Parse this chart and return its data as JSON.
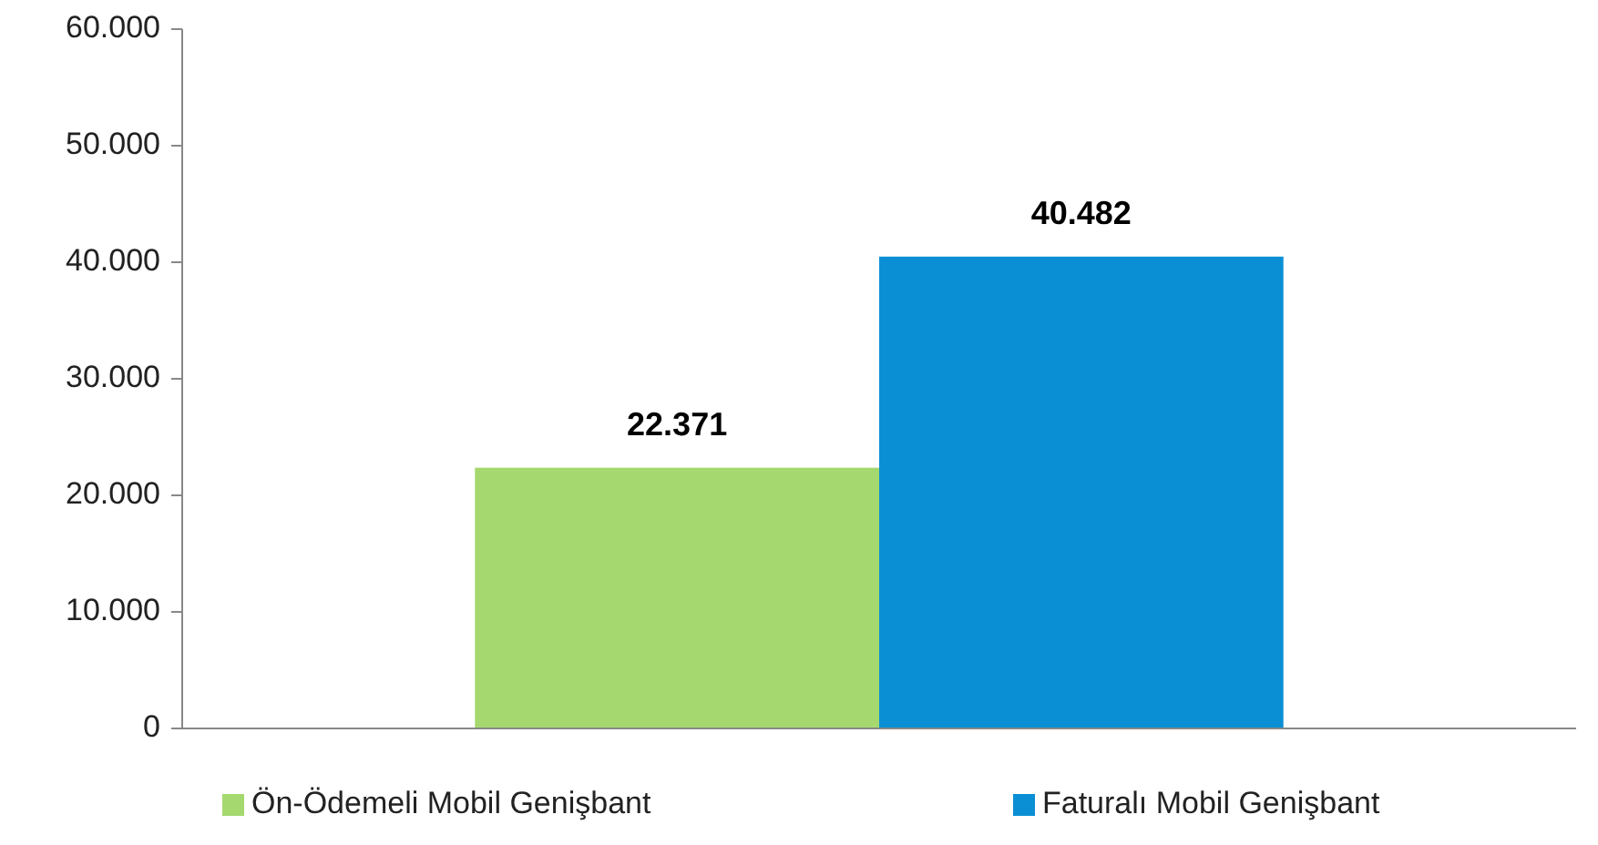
{
  "chart_data": {
    "type": "bar",
    "categories": [
      null
    ],
    "series": [
      {
        "name": "Ön-Ödemeli Mobil Genişbant",
        "color": "#a5d86e",
        "values": [
          22371
        ],
        "value_labels": [
          "22.371"
        ]
      },
      {
        "name": "Faturalı Mobil Genişbant",
        "color": "#0a8fd4",
        "values": [
          40482
        ],
        "value_labels": [
          "40.482"
        ]
      }
    ],
    "ylim": [
      0,
      60000
    ],
    "yticks": [
      {
        "value": 0,
        "label": "0"
      },
      {
        "value": 10000,
        "label": "10.000"
      },
      {
        "value": 20000,
        "label": "20.000"
      },
      {
        "value": 30000,
        "label": "30.000"
      },
      {
        "value": 40000,
        "label": "40.000"
      },
      {
        "value": 50000,
        "label": "50.000"
      },
      {
        "value": 60000,
        "label": "60.000"
      }
    ],
    "grid": false,
    "legend": "bottom"
  }
}
